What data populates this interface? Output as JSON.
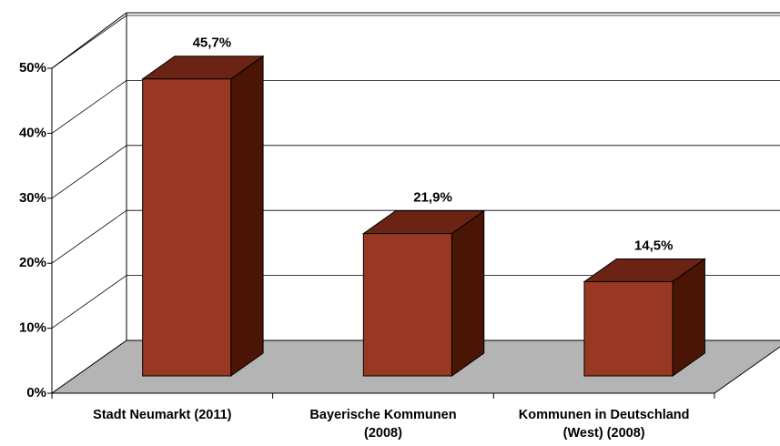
{
  "chart_data": {
    "type": "bar3d",
    "categories": [
      "Stadt Neumarkt (2011)",
      "Bayerische Kommunen (2008)",
      "Kommunen in Deutschland (West) (2008)"
    ],
    "values": [
      45.7,
      21.9,
      14.5
    ],
    "value_labels": [
      "45,7%",
      "21,9%",
      "14,5%"
    ],
    "color": "#993822",
    "ylim": [
      0,
      50
    ],
    "yticks": [
      {
        "value": 0,
        "label": "0%"
      },
      {
        "value": 10,
        "label": "10%"
      },
      {
        "value": 20,
        "label": "20%"
      },
      {
        "value": 30,
        "label": "30%"
      },
      {
        "value": 40,
        "label": "40%"
      },
      {
        "value": 50,
        "label": "50%"
      }
    ],
    "grid": true
  }
}
